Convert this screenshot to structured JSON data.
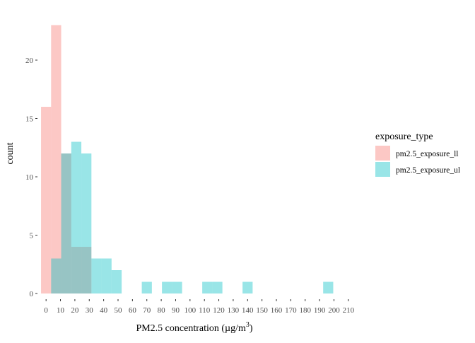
{
  "chart_data": {
    "type": "bar",
    "subtype": "overlaid-histogram",
    "binwidth": 7,
    "x": [
      0,
      7,
      14,
      21,
      28,
      35,
      42,
      49,
      56,
      63,
      70,
      77,
      84,
      91,
      98,
      105,
      112,
      119,
      126,
      133,
      140,
      147,
      154,
      161,
      168,
      175,
      182,
      189,
      196,
      203
    ],
    "series": [
      {
        "name": "pm2.5_exposure_ll",
        "color": "#F8766D",
        "values": [
          16,
          23,
          12,
          4,
          4,
          0,
          0,
          0,
          0,
          0,
          0,
          0,
          0,
          0,
          0,
          0,
          0,
          0,
          0,
          0,
          0,
          0,
          0,
          0,
          0,
          0,
          0,
          0,
          0,
          0
        ]
      },
      {
        "name": "pm2.5_exposure_ul",
        "color": "#00BFC4",
        "values": [
          0,
          3,
          12,
          13,
          12,
          3,
          3,
          2,
          0,
          0,
          1,
          0,
          1,
          1,
          0,
          0,
          1,
          1,
          0,
          0,
          1,
          0,
          0,
          0,
          0,
          0,
          0,
          0,
          1,
          0
        ]
      }
    ],
    "fill_alpha": 0.4,
    "xlabel_main": "PM2.5 concentration (",
    "xlabel_unit": "µg/m",
    "xlabel_sup": "3",
    "xlabel_close": ")",
    "ylabel": "count",
    "xlim": [
      -5,
      215
    ],
    "ylim": [
      0,
      24
    ],
    "xticks": [
      0,
      10,
      20,
      30,
      40,
      50,
      60,
      70,
      80,
      90,
      100,
      110,
      120,
      130,
      140,
      150,
      160,
      170,
      180,
      190,
      200,
      210
    ],
    "yticks": [
      0,
      5,
      10,
      15,
      20
    ],
    "grid": false,
    "legend": {
      "title": "exposure_type",
      "position": "right"
    }
  }
}
